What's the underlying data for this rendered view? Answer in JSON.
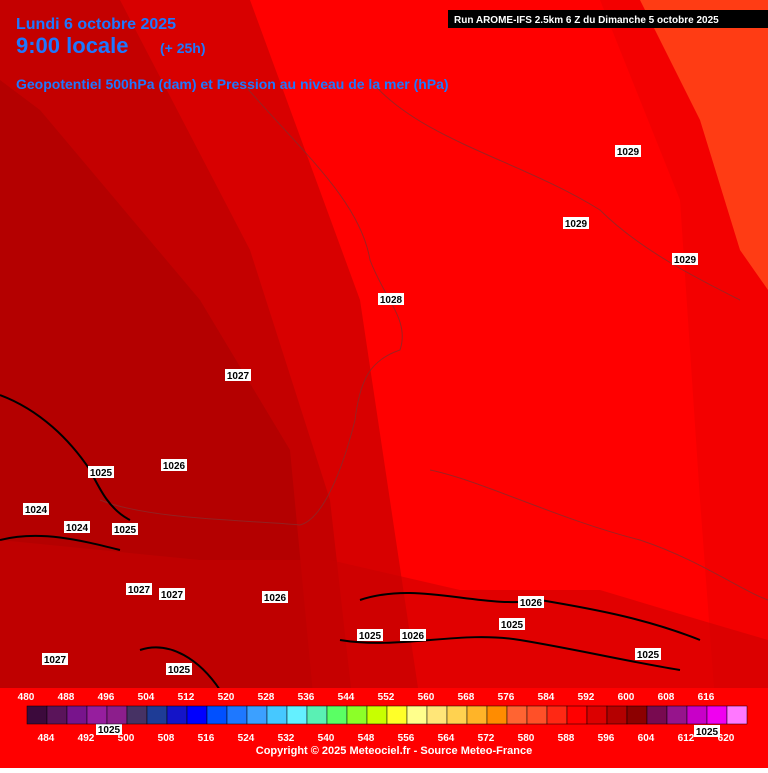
{
  "header": {
    "date": "Lundi 6 octobre 2025",
    "time": "9:00 locale",
    "lead": "(+ 25h)",
    "subtitle": "Geopotentiel 500hPa (dam) et Pression au niveau de la mer (hPa)",
    "run": "Run AROME-IFS 2.5km 6 Z du Dimanche 5 octobre 2025"
  },
  "isobar_labels": [
    1029,
    1029,
    1029,
    1028,
    1027,
    1026,
    1025,
    1024,
    1024,
    1025,
    1027,
    1027,
    1026,
    1026,
    1025,
    1025,
    1026,
    1025,
    1027,
    1025,
    1025,
    1025
  ],
  "colorbar": {
    "ticks": [
      480,
      484,
      488,
      492,
      496,
      500,
      504,
      508,
      512,
      516,
      520,
      524,
      528,
      532,
      536,
      540,
      544,
      548,
      552,
      556,
      560,
      564,
      568,
      572,
      576,
      580,
      584,
      588,
      592,
      596,
      600,
      604,
      608,
      612,
      616,
      620
    ],
    "colors": [
      "#3c0a3c",
      "#5a145a",
      "#78148c",
      "#961e9e",
      "#8c1e8c",
      "#463264",
      "#1e3c96",
      "#1414c8",
      "#0000ff",
      "#0050ff",
      "#1e78ff",
      "#3ca0ff",
      "#46c8ff",
      "#64f0ff",
      "#5af0b4",
      "#5aff64",
      "#8cff28",
      "#c8ff00",
      "#ffff28",
      "#ffff8c",
      "#ffe678",
      "#ffd250",
      "#ffb428",
      "#ff8c00",
      "#ff6432",
      "#ff5028",
      "#ff2814",
      "#ff0000",
      "#dc0000",
      "#b40000",
      "#8c0000",
      "#780a50",
      "#96148c",
      "#c800c8",
      "#f000f0",
      "#ff78ff"
    ]
  },
  "footer": "Copyright © 2025 Meteociel.fr - Source Meteo-France"
}
